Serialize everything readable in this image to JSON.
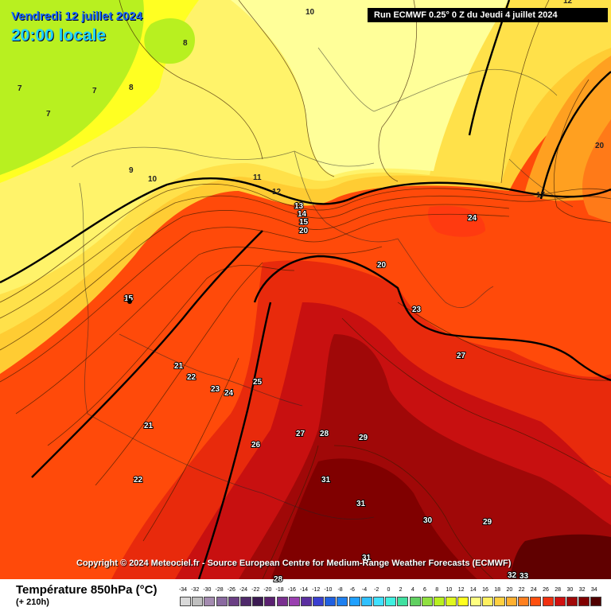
{
  "header": {
    "date": "Vendredi 12 juillet 2024",
    "time": "20:00 locale",
    "run": "Run ECMWF 0.25° 0 Z du Jeudi 4 juillet 2024"
  },
  "copyright": "Copyright © 2024 Meteociel.fr - Source European Centre for Medium-Range Weather Forecasts (ECMWF)",
  "legend": {
    "title": "Température 850hPa (°C)",
    "subtitle": "(+ 210h)",
    "scale_values": [
      "-34",
      "-32",
      "-30",
      "-28",
      "-26",
      "-24",
      "-22",
      "-20",
      "-18",
      "-16",
      "-14",
      "-12",
      "-10",
      "-8",
      "-6",
      "-4",
      "-2",
      "0",
      "2",
      "4",
      "6",
      "8",
      "10",
      "12",
      "14",
      "16",
      "18",
      "20",
      "22",
      "24",
      "26",
      "28",
      "30",
      "32",
      "34"
    ],
    "scale_colors": [
      "#d9d9d9",
      "#bfbfbf",
      "#a48bb0",
      "#8a6aa0",
      "#6b3f84",
      "#4f2a6b",
      "#3b1a52",
      "#5a2070",
      "#7a3090",
      "#9a40b0",
      "#5b2fa0",
      "#3a3fd0",
      "#2060e0",
      "#1f80f0",
      "#20a0ff",
      "#30c0ff",
      "#40e0ff",
      "#40f0e0",
      "#40e0a0",
      "#60d060",
      "#90e040",
      "#b8f020",
      "#e0f820",
      "#ffff20",
      "#ffff80",
      "#fff060",
      "#ffd040",
      "#ffb030",
      "#ff8020",
      "#ff5010",
      "#f03010",
      "#d01010",
      "#a00808",
      "#800000",
      "#500000"
    ]
  },
  "map_labels": [
    {
      "text": "10"
    },
    {
      "text": "8"
    },
    {
      "text": "7"
    },
    {
      "text": "7"
    },
    {
      "text": "7"
    },
    {
      "text": "8"
    },
    {
      "text": "9"
    },
    {
      "text": "10"
    },
    {
      "text": "11"
    },
    {
      "text": "12"
    },
    {
      "text": "13"
    },
    {
      "text": "14"
    },
    {
      "text": "15"
    },
    {
      "text": "20"
    },
    {
      "text": "12"
    },
    {
      "text": "17"
    },
    {
      "text": "20"
    },
    {
      "text": "24"
    },
    {
      "text": "20"
    },
    {
      "text": "15"
    },
    {
      "text": "23"
    },
    {
      "text": "27"
    },
    {
      "text": "21"
    },
    {
      "text": "22"
    },
    {
      "text": "23"
    },
    {
      "text": "24"
    },
    {
      "text": "25"
    },
    {
      "text": "21"
    },
    {
      "text": "26"
    },
    {
      "text": "27"
    },
    {
      "text": "28"
    },
    {
      "text": "29"
    },
    {
      "text": "22"
    },
    {
      "text": "31"
    },
    {
      "text": "31"
    },
    {
      "text": "30"
    },
    {
      "text": "29"
    },
    {
      "text": "31"
    },
    {
      "text": "32"
    },
    {
      "text": "33"
    },
    {
      "text": "28"
    }
  ]
}
